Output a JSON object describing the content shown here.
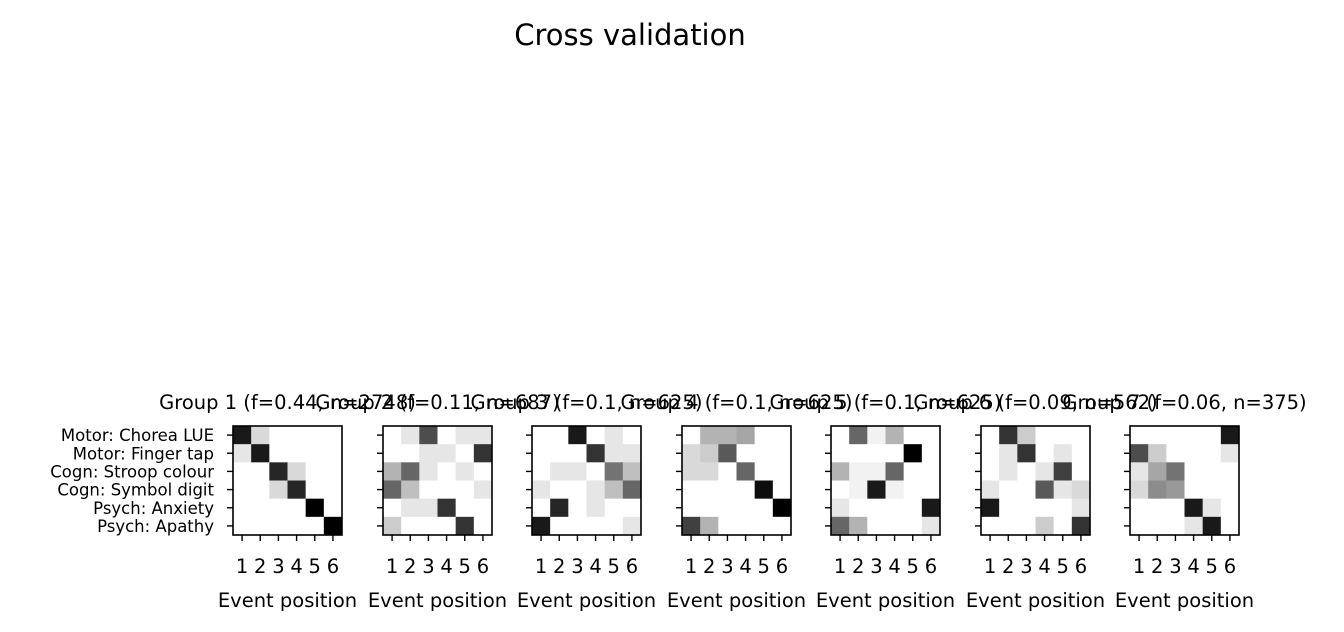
{
  "chart_data": {
    "type": "heatmap",
    "title": "Cross validation",
    "xlabel": "Event position",
    "x_ticks": [
      "1",
      "2",
      "3",
      "4",
      "5",
      "6"
    ],
    "rows": [
      "Motor: Chorea LUE",
      "Motor: Finger tap",
      "Cogn: Stroop colour",
      "Cogn: Symbol digit",
      "Psych: Anxiety",
      "Psych: Apathy"
    ],
    "colormap": "grayscale, white = 0, black = 1",
    "panels": [
      {
        "title": "Group 1 (f=0.44, n=2748)",
        "values": [
          [
            0.9,
            0.15,
            0,
            0,
            0,
            0
          ],
          [
            0.1,
            0.9,
            0,
            0,
            0,
            0
          ],
          [
            0,
            0,
            0.85,
            0.15,
            0,
            0
          ],
          [
            0,
            0,
            0.15,
            0.85,
            0,
            0
          ],
          [
            0,
            0,
            0,
            0,
            1.0,
            0
          ],
          [
            0,
            0,
            0,
            0,
            0,
            1.0
          ]
        ]
      },
      {
        "title": "Group 2 (f=0.11, n=687)",
        "values": [
          [
            0,
            0.1,
            0.7,
            0,
            0.1,
            0.1
          ],
          [
            0,
            0,
            0.1,
            0.1,
            0,
            0.8
          ],
          [
            0.3,
            0.6,
            0.1,
            0,
            0.1,
            0
          ],
          [
            0.6,
            0.25,
            0,
            0,
            0,
            0.1
          ],
          [
            0,
            0.1,
            0.1,
            0.8,
            0,
            0
          ],
          [
            0.2,
            0,
            0,
            0,
            0.8,
            0
          ]
        ]
      },
      {
        "title": "Group 3 (f=0.1, n=625)",
        "values": [
          [
            0,
            0,
            0.9,
            0,
            0.1,
            0
          ],
          [
            0,
            0,
            0,
            0.8,
            0.1,
            0.1
          ],
          [
            0,
            0.1,
            0.1,
            0,
            0.55,
            0.25
          ],
          [
            0.1,
            0,
            0,
            0.1,
            0.25,
            0.6
          ],
          [
            0,
            0.85,
            0,
            0.1,
            0,
            0
          ],
          [
            0.9,
            0,
            0,
            0,
            0,
            0.1
          ]
        ]
      },
      {
        "title": "Group 4 (f=0.1, n=625)",
        "values": [
          [
            0,
            0.3,
            0.3,
            0.35,
            0,
            0
          ],
          [
            0.15,
            0.2,
            0.65,
            0,
            0,
            0
          ],
          [
            0.15,
            0.15,
            0,
            0.6,
            0,
            0
          ],
          [
            0,
            0,
            0,
            0,
            0.95,
            0
          ],
          [
            0,
            0,
            0,
            0,
            0,
            1.0
          ],
          [
            0.75,
            0.3,
            0,
            0,
            0,
            0
          ]
        ]
      },
      {
        "title": "Group 5 (f=0.1, n=625)",
        "values": [
          [
            0,
            0.6,
            0.05,
            0.3,
            0,
            0
          ],
          [
            0,
            0,
            0,
            0,
            1.0,
            0
          ],
          [
            0.3,
            0.05,
            0.05,
            0.6,
            0,
            0
          ],
          [
            0,
            0.05,
            0.9,
            0.05,
            0,
            0
          ],
          [
            0.1,
            0,
            0,
            0,
            0,
            0.9
          ],
          [
            0.6,
            0.3,
            0,
            0,
            0,
            0.1
          ]
        ]
      },
      {
        "title": "Group 6 (f=0.09, n=562)",
        "values": [
          [
            0,
            0.8,
            0.2,
            0,
            0,
            0
          ],
          [
            0,
            0.1,
            0.8,
            0,
            0.1,
            0
          ],
          [
            0,
            0.1,
            0,
            0.1,
            0.75,
            0
          ],
          [
            0.1,
            0,
            0,
            0.65,
            0.1,
            0.15
          ],
          [
            0.9,
            0,
            0,
            0,
            0,
            0.1
          ],
          [
            0,
            0,
            0,
            0.2,
            0,
            0.8
          ]
        ]
      },
      {
        "title": "Group 7 (f=0.06, n=375)",
        "values": [
          [
            0,
            0,
            0,
            0,
            0,
            0.9
          ],
          [
            0.7,
            0.2,
            0,
            0,
            0,
            0.1
          ],
          [
            0.1,
            0.35,
            0.55,
            0,
            0,
            0
          ],
          [
            0.15,
            0.45,
            0.4,
            0,
            0,
            0
          ],
          [
            0,
            0,
            0,
            0.9,
            0.1,
            0
          ],
          [
            0,
            0,
            0,
            0.1,
            0.9,
            0
          ]
        ]
      }
    ]
  }
}
